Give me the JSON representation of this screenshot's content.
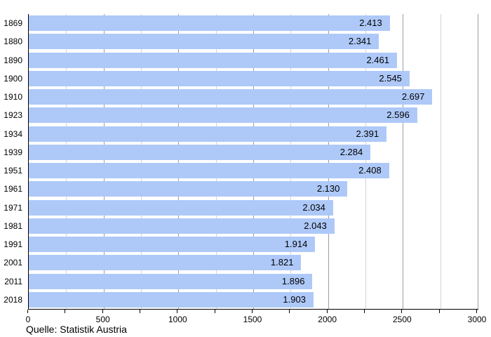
{
  "chart_data": {
    "type": "bar",
    "orientation": "horizontal",
    "title": "",
    "xlabel": "",
    "ylabel": "",
    "categories": [
      "1869",
      "1880",
      "1890",
      "1900",
      "1910",
      "1923",
      "1934",
      "1939",
      "1951",
      "1961",
      "1971",
      "1981",
      "1991",
      "2001",
      "2011",
      "2018"
    ],
    "values": [
      2413,
      2341,
      2461,
      2545,
      2697,
      2596,
      2391,
      2284,
      2408,
      2130,
      2034,
      2043,
      1914,
      1821,
      1896,
      1903
    ],
    "value_labels": [
      "2.413",
      "2.341",
      "2.461",
      "2.545",
      "2.697",
      "2.596",
      "2.391",
      "2.284",
      "2.408",
      "2.130",
      "2.034",
      "2.043",
      "1.914",
      "1.821",
      "1.896",
      "1.903"
    ],
    "xlim": [
      0,
      3000
    ],
    "x_ticks": [
      0,
      500,
      1000,
      1500,
      2000,
      2500,
      3000
    ],
    "x_tick_labels": [
      "0",
      "500",
      "1000",
      "1500",
      "2000",
      "2500",
      "3000"
    ],
    "minor_tick_step": 250,
    "grid": "vertical gridlines, major every 500, minor every 250",
    "legend": "none",
    "colors": {
      "bar": "#aec9f8",
      "grid_major": "#9e9e9e",
      "grid_minor": "#d4d4d4",
      "axis": "#000000",
      "text": "#000000"
    }
  },
  "footer": {
    "source": "Quelle: Statistik Austria"
  }
}
